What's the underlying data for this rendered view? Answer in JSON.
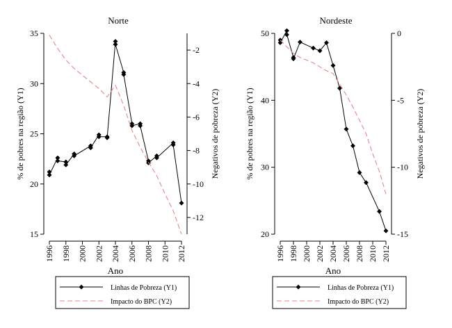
{
  "chart_data": [
    {
      "type": "line",
      "title": "Norte",
      "xlabel": "Ano",
      "ylabel": "% de pobres na região (Y1)",
      "y2label": "Negativos de pobreza (Y2)",
      "xlim": [
        1996,
        2012
      ],
      "ylim": [
        15,
        35
      ],
      "y2lim": [
        -13,
        -1
      ],
      "xticks": [
        "1996",
        "1998",
        "2000",
        "2002",
        "2004",
        "2006",
        "2008",
        "2010",
        "2012"
      ],
      "yticks": [
        "15",
        "20",
        "25",
        "30",
        "35"
      ],
      "y2ticks": [
        "-12",
        "-10",
        "-8",
        "-6",
        "-4",
        "-2"
      ],
      "series": [
        {
          "name": "Linhas de Pobreza (Y1)",
          "axis": "y1",
          "style": "solid-diamond",
          "points": [
            [
              1996,
              21.2
            ],
            [
              1996,
              20.9
            ],
            [
              1997,
              22.6
            ],
            [
              1997,
              22.3
            ],
            [
              1998,
              22.2
            ],
            [
              1998,
              21.9
            ],
            [
              1999,
              23.0
            ],
            [
              1999,
              22.8
            ],
            [
              2001,
              23.8
            ],
            [
              2001,
              23.6
            ],
            [
              2002,
              24.9
            ],
            [
              2002,
              24.7
            ],
            [
              2003,
              24.7
            ],
            [
              2003,
              24.6
            ],
            [
              2004,
              34.2
            ],
            [
              2004,
              33.9
            ],
            [
              2005,
              31.1
            ],
            [
              2005,
              30.9
            ],
            [
              2006,
              26.0
            ],
            [
              2006,
              25.8
            ],
            [
              2007,
              26.0
            ],
            [
              2007,
              25.8
            ],
            [
              2008,
              22.3
            ],
            [
              2008,
              22.1
            ],
            [
              2009,
              22.8
            ],
            [
              2009,
              22.6
            ],
            [
              2011,
              24.1
            ],
            [
              2011,
              23.9
            ],
            [
              2012,
              18.1
            ]
          ]
        },
        {
          "name": "Impacto do BPC (Y2)",
          "axis": "y2",
          "style": "dashed",
          "color": "#e8868a",
          "points": [
            [
              1996,
              -1.1
            ],
            [
              1997,
              -1.9
            ],
            [
              1998,
              -2.6
            ],
            [
              1999,
              -3.1
            ],
            [
              2000,
              -3.5
            ],
            [
              2001,
              -3.9
            ],
            [
              2002,
              -4.3
            ],
            [
              2003,
              -4.8
            ],
            [
              2004,
              -4.1
            ],
            [
              2005,
              -5.3
            ],
            [
              2006,
              -6.8
            ],
            [
              2007,
              -7.8
            ],
            [
              2008,
              -8.7
            ],
            [
              2009,
              -9.5
            ],
            [
              2010,
              -10.6
            ],
            [
              2011,
              -11.6
            ],
            [
              2012,
              -13.0
            ]
          ]
        }
      ],
      "legend": {
        "position": "bottom",
        "entries": [
          "Linhas de Pobreza (Y1)",
          "Impacto do BPC (Y2)"
        ]
      }
    },
    {
      "type": "line",
      "title": "Nordeste",
      "xlabel": "Ano",
      "ylabel": "% de pobres na região (Y1)",
      "y2label": "Negativos de pobreza (Y2)",
      "xlim": [
        1996,
        2012
      ],
      "ylim": [
        20,
        50
      ],
      "y2lim": [
        -15,
        0
      ],
      "xticks": [
        "1996",
        "1998",
        "2000",
        "2002",
        "2004",
        "2006",
        "2008",
        "2010",
        "2012"
      ],
      "yticks": [
        "20",
        "30",
        "40",
        "50"
      ],
      "y2ticks": [
        "-15",
        "-10",
        "-5",
        "0"
      ],
      "series": [
        {
          "name": "Linhas de Pobreza (Y1)",
          "axis": "y1",
          "style": "solid-diamond",
          "points": [
            [
              1996,
              49.0
            ],
            [
              1996,
              48.6
            ],
            [
              1997,
              50.4
            ],
            [
              1997,
              49.8
            ],
            [
              1998,
              46.4
            ],
            [
              1998,
              46.2
            ],
            [
              1999,
              48.7
            ],
            [
              2001,
              47.8
            ],
            [
              2002,
              47.4
            ],
            [
              2003,
              48.6
            ],
            [
              2004,
              45.2
            ],
            [
              2005,
              41.8
            ],
            [
              2006,
              35.7
            ],
            [
              2007,
              33.2
            ],
            [
              2008,
              29.2
            ],
            [
              2009,
              27.7
            ],
            [
              2011,
              23.4
            ],
            [
              2012,
              20.5
            ]
          ]
        },
        {
          "name": "Impacto do BPC (Y2)",
          "axis": "y2",
          "style": "dashed",
          "color": "#e8868a",
          "points": [
            [
              1996,
              -0.5
            ],
            [
              1997,
              -1.0
            ],
            [
              1998,
              -1.5
            ],
            [
              1999,
              -1.8
            ],
            [
              2000,
              -2.0
            ],
            [
              2001,
              -2.2
            ],
            [
              2002,
              -2.5
            ],
            [
              2003,
              -2.8
            ],
            [
              2004,
              -3.0
            ],
            [
              2005,
              -3.8
            ],
            [
              2006,
              -4.6
            ],
            [
              2007,
              -5.5
            ],
            [
              2008,
              -6.5
            ],
            [
              2009,
              -7.5
            ],
            [
              2010,
              -9.0
            ],
            [
              2011,
              -10.3
            ],
            [
              2012,
              -12.0
            ]
          ]
        }
      ],
      "legend": {
        "position": "bottom",
        "entries": [
          "Linhas de Pobreza (Y1)",
          "Impacto do BPC (Y2)"
        ]
      }
    }
  ]
}
